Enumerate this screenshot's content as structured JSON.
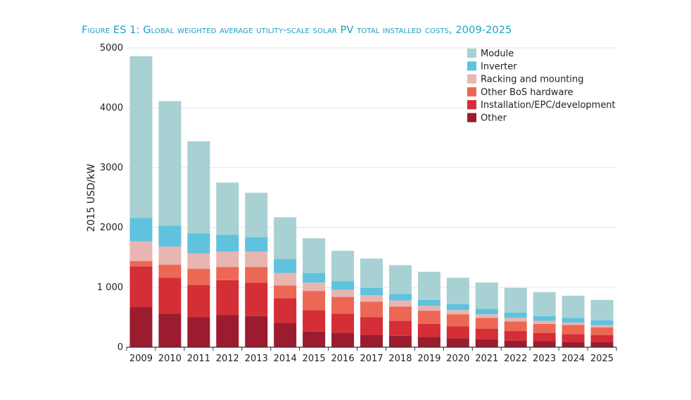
{
  "chart_data": {
    "type": "bar",
    "stacked": true,
    "title": "Figure ES 1: Global weighted average utility-scale solar PV total installed costs, 2009-2025",
    "xlabel": "",
    "ylabel": "2015 USD/kW",
    "ylim": [
      0,
      5000
    ],
    "yticks": [
      "0",
      "1 000",
      "2000",
      "3000",
      "4000",
      "5000"
    ],
    "ytick_values": [
      0,
      1000,
      2000,
      3000,
      4000,
      5000
    ],
    "grid": true,
    "legend_position": "top-right",
    "categories": [
      "2009",
      "2010",
      "2011",
      "2012",
      "2013",
      "2014",
      "2015",
      "2016",
      "2017",
      "2018",
      "2019",
      "2020",
      "2021",
      "2022",
      "2023",
      "2024",
      "2025"
    ],
    "series": [
      {
        "name": "Other",
        "color": "#9b1c2e",
        "values": [
          670,
          560,
          500,
          540,
          520,
          400,
          260,
          240,
          200,
          190,
          170,
          150,
          130,
          110,
          100,
          90,
          90
        ]
      },
      {
        "name": "Installation/EPC/development",
        "color": "#d42e36",
        "values": [
          680,
          600,
          540,
          580,
          560,
          420,
          360,
          320,
          300,
          250,
          220,
          200,
          180,
          160,
          140,
          130,
          110
        ]
      },
      {
        "name": "Other BoS hardware",
        "color": "#ec6855",
        "values": [
          90,
          220,
          270,
          220,
          260,
          210,
          320,
          280,
          260,
          240,
          220,
          200,
          180,
          160,
          150,
          150,
          130
        ]
      },
      {
        "name": "Racking and mounting",
        "color": "#e9b5b0",
        "values": [
          330,
          300,
          260,
          260,
          260,
          210,
          140,
          120,
          110,
          100,
          80,
          70,
          60,
          60,
          50,
          40,
          40
        ]
      },
      {
        "name": "Inverter",
        "color": "#5fc2de",
        "values": [
          390,
          350,
          330,
          280,
          240,
          230,
          160,
          140,
          120,
          110,
          100,
          100,
          90,
          90,
          80,
          80,
          80
        ]
      },
      {
        "name": "Module",
        "color": "#a7d1d3",
        "values": [
          2700,
          2080,
          1540,
          870,
          740,
          700,
          580,
          510,
          490,
          480,
          470,
          440,
          440,
          410,
          400,
          370,
          340
        ]
      }
    ],
    "legend_order": [
      "Module",
      "Inverter",
      "Racking and mounting",
      "Other BoS hardware",
      "Installation/EPC/development",
      "Other"
    ]
  }
}
